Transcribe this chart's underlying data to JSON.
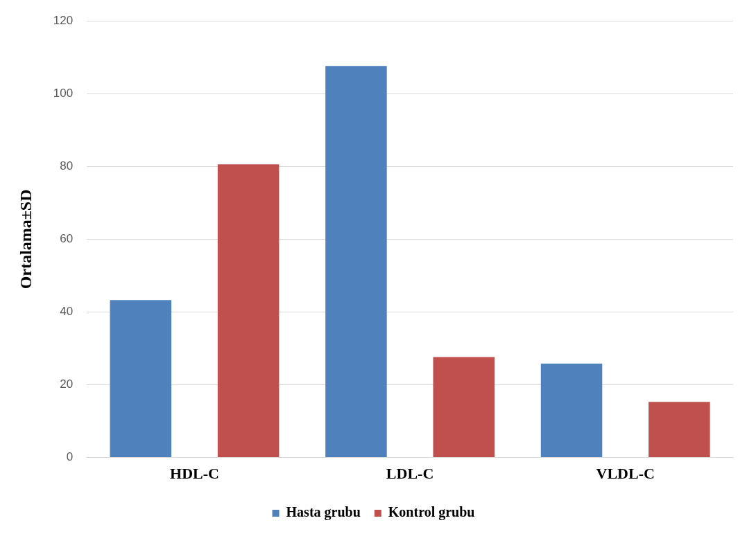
{
  "chart_data": {
    "type": "bar",
    "ylabel": "Ortalama±SD",
    "categories": [
      "HDL-C",
      "LDL-C",
      "VLDL-C"
    ],
    "series": [
      {
        "name": "Hasta grubu",
        "color": "#4f81bd",
        "values": [
          43.3,
          107.6,
          25.8
        ]
      },
      {
        "name": "Kontrol grubu",
        "color": "#c0504d",
        "values": [
          80.6,
          27.6,
          15.3
        ]
      }
    ],
    "ylim": [
      0,
      120
    ],
    "yticks": [
      0,
      20,
      40,
      60,
      80,
      100,
      120
    ],
    "grid": "y",
    "legend": "bottom"
  }
}
